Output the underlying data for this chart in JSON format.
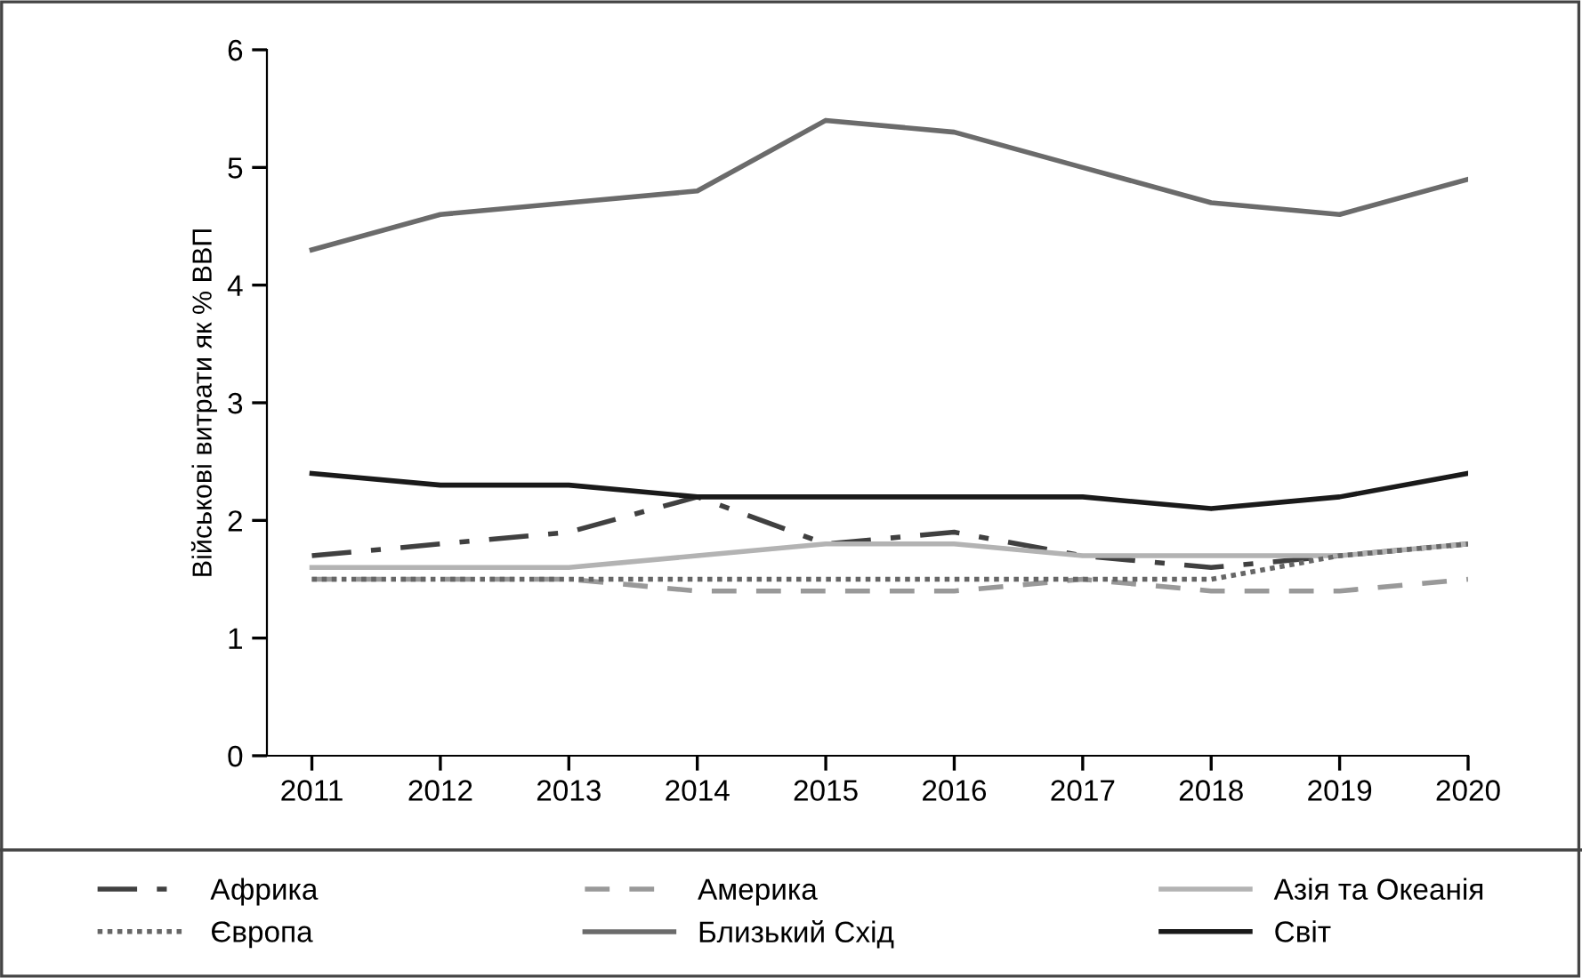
{
  "chart_data": {
    "type": "line",
    "ylabel": "Військові витрати як % ВВП",
    "categories": [
      "2011",
      "2012",
      "2013",
      "2014",
      "2015",
      "2016",
      "2017",
      "2018",
      "2019",
      "2020"
    ],
    "ylim": [
      0,
      6
    ],
    "yticks": [
      0,
      1,
      2,
      3,
      4,
      5,
      6
    ],
    "grid": false,
    "legend": "bottom",
    "marker": "none",
    "series": [
      {
        "name": "Африка",
        "color": "#404040",
        "line_style": "dashdot",
        "values": [
          1.7,
          1.8,
          1.9,
          2.2,
          1.8,
          1.9,
          1.7,
          1.6,
          1.7,
          1.8
        ]
      },
      {
        "name": "Америка",
        "color": "#999999",
        "line_style": "dashed",
        "values": [
          1.5,
          1.5,
          1.5,
          1.4,
          1.4,
          1.4,
          1.5,
          1.4,
          1.4,
          1.5
        ]
      },
      {
        "name": "Азія та Океанія",
        "color": "#b3b3b3",
        "line_style": "solid",
        "values": [
          1.6,
          1.6,
          1.6,
          1.7,
          1.8,
          1.8,
          1.7,
          1.7,
          1.7,
          1.8
        ]
      },
      {
        "name": "Європа",
        "color": "#666666",
        "line_style": "dotted",
        "values": [
          1.5,
          1.5,
          1.5,
          1.5,
          1.5,
          1.5,
          1.5,
          1.5,
          1.7,
          1.8
        ]
      },
      {
        "name": "Близький Схід",
        "color": "#6b6b6b",
        "line_style": "solid",
        "values": [
          4.3,
          4.6,
          4.7,
          4.8,
          5.4,
          5.3,
          5.0,
          4.7,
          4.6,
          4.9
        ]
      },
      {
        "name": "Світ",
        "color": "#1a1a1a",
        "line_style": "solid",
        "values": [
          2.4,
          2.3,
          2.3,
          2.2,
          2.2,
          2.2,
          2.2,
          2.1,
          2.2,
          2.4
        ]
      }
    ]
  }
}
